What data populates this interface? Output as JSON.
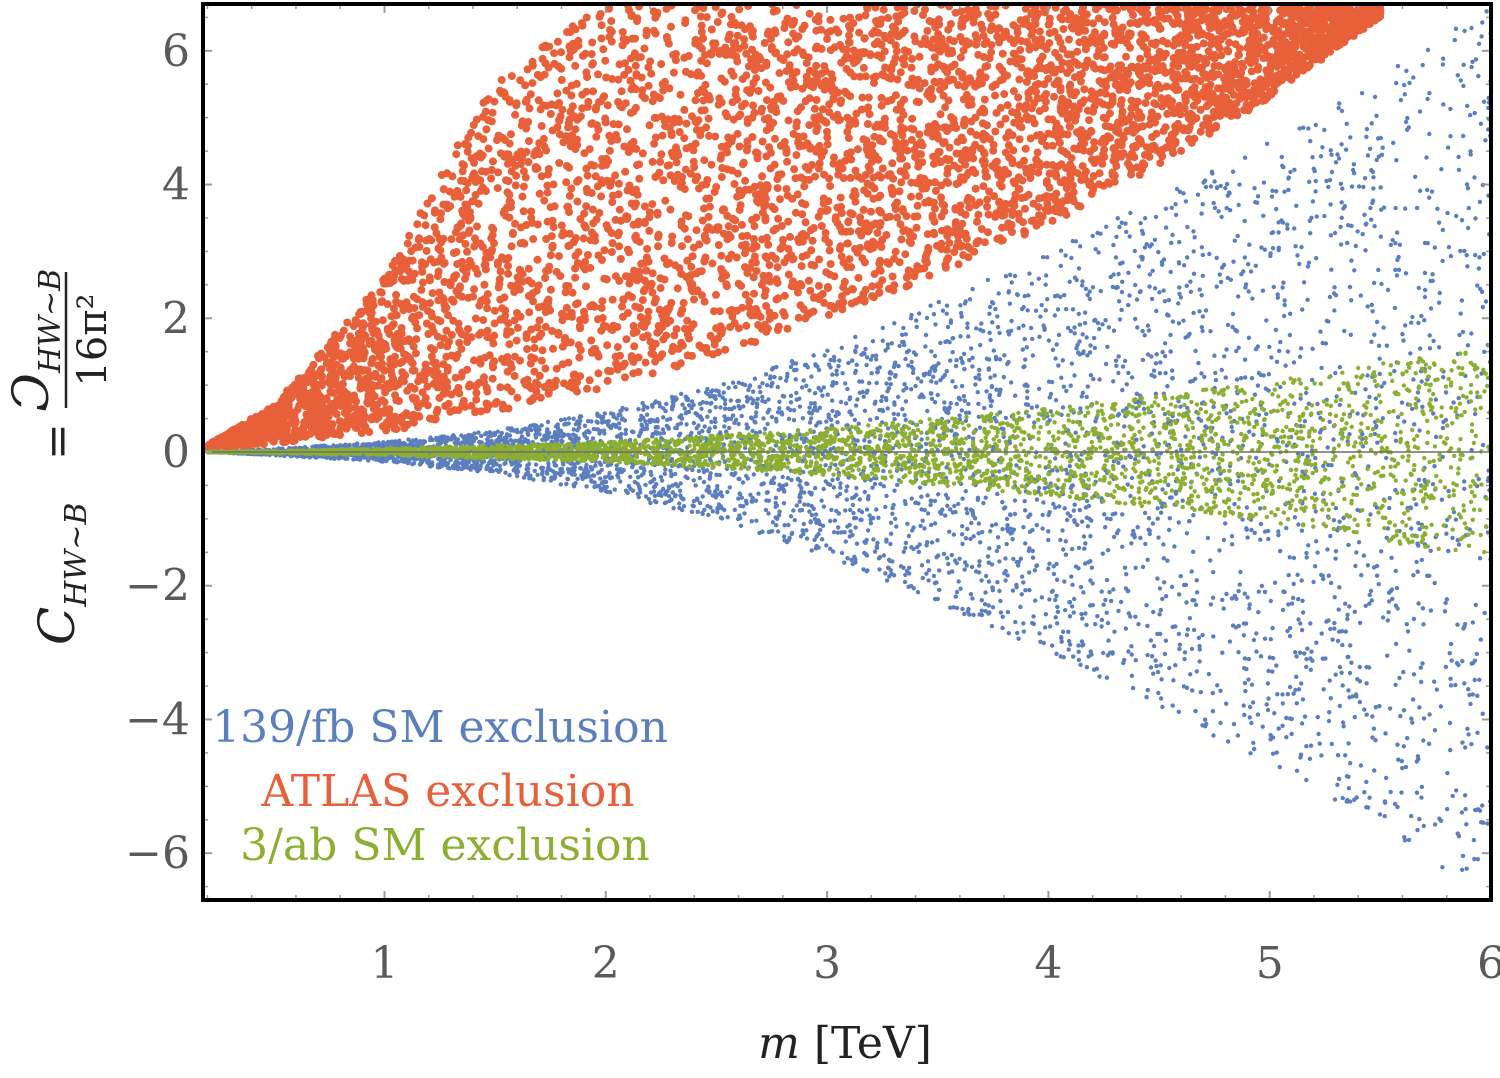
{
  "chart_data": {
    "type": "scatter",
    "title": "",
    "xlabel": "m [TeV]",
    "ylabel": {
      "lhs": "C_{HW~B}",
      "rhs_numerator": "Ɔ_{HW~B}",
      "rhs_denominator": "16π²"
    },
    "xlim": [
      0.18,
      6.0
    ],
    "ylim": [
      -6.7,
      6.7
    ],
    "xticks": [
      1,
      2,
      3,
      4,
      5,
      6
    ],
    "yticks": [
      -6,
      -4,
      -2,
      0,
      2,
      4,
      6
    ],
    "ytick_labels": [
      "−6",
      "−4",
      "−2",
      "0",
      "2",
      "4",
      "6"
    ],
    "zero_line": true,
    "series": [
      {
        "name": "139/fb SM exclusion",
        "color": "#5B7FBE",
        "region": "allowed band |C| ≤ f(m)",
        "envelope": {
          "m": [
            0.2,
            0.5,
            1.0,
            1.5,
            2.0,
            2.5,
            3.0,
            3.5,
            4.0,
            4.5,
            5.0,
            5.5,
            6.0
          ],
          "upper": [
            0.0,
            0.05,
            0.15,
            0.32,
            0.6,
            1.0,
            1.55,
            2.25,
            3.0,
            3.8,
            4.7,
            5.6,
            6.7
          ],
          "lower": [
            0.0,
            -0.05,
            -0.15,
            -0.32,
            -0.6,
            -1.0,
            -1.55,
            -2.25,
            -3.0,
            -3.8,
            -4.7,
            -5.6,
            -6.7
          ]
        }
      },
      {
        "name": "ATLAS exclusion",
        "color": "#E8603A",
        "region": "excluded region above lower edge",
        "envelope": {
          "m": [
            0.2,
            0.5,
            1.0,
            1.5,
            2.0,
            2.5,
            3.0,
            3.5,
            4.0,
            4.5,
            5.0,
            5.5
          ],
          "upper": [
            0.1,
            0.7,
            2.6,
            5.6,
            6.7,
            6.7,
            6.7,
            6.7,
            6.7,
            6.7,
            6.7,
            6.7
          ],
          "lower": [
            0.05,
            0.12,
            0.3,
            0.6,
            0.95,
            1.45,
            2.0,
            2.65,
            3.4,
            4.3,
            5.3,
            6.5
          ]
        }
      },
      {
        "name": "3/ab SM exclusion",
        "color": "#8CAF32",
        "region": "narrow band around zero",
        "envelope": {
          "m": [
            0.2,
            1.0,
            2.0,
            3.0,
            4.0,
            5.0,
            6.0
          ],
          "upper": [
            0.0,
            0.05,
            0.15,
            0.35,
            0.65,
            1.05,
            1.6
          ],
          "lower": [
            0.0,
            -0.05,
            -0.15,
            -0.35,
            -0.65,
            -1.05,
            -1.6
          ]
        }
      }
    ],
    "legend": {
      "placement": "bottom-left",
      "entries": [
        {
          "label": "139/fb SM exclusion",
          "color": "#5B7FBE"
        },
        {
          "label": "ATLAS exclusion",
          "color": "#E8603A"
        },
        {
          "label": "3/ab SM exclusion",
          "color": "#8CAF32"
        }
      ]
    }
  }
}
